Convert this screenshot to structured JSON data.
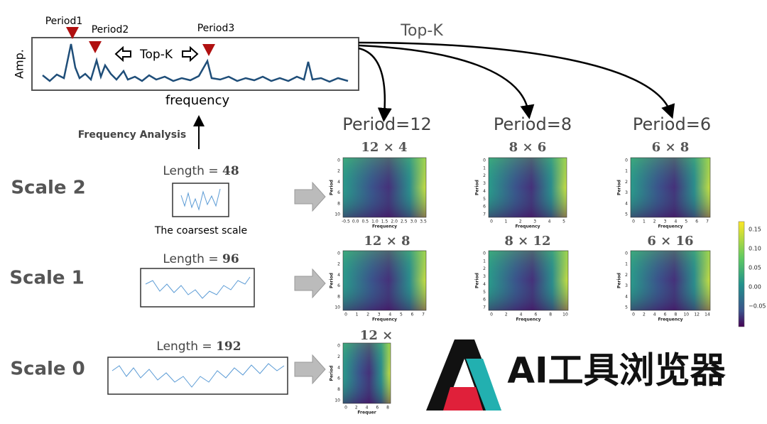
{
  "spectrum": {
    "peak_labels": [
      "Period1",
      "Period2",
      "Period3"
    ],
    "top_k_inner": "Top-K",
    "y_label": "Amp.",
    "x_label": "frequency"
  },
  "top_k": "Top-K",
  "frequency_analysis": "Frequency Analysis",
  "period_headers": [
    "Period=12",
    "Period=8",
    "Period=6"
  ],
  "scales": [
    {
      "label": "Scale 2",
      "length_prefix": "Length = ",
      "length": "48",
      "note": "The coarsest scale"
    },
    {
      "label": "Scale 1",
      "length_prefix": "Length = ",
      "length": "96"
    },
    {
      "label": "Scale 0",
      "length_prefix": "Length = ",
      "length": "192"
    }
  ],
  "heatmaps": [
    {
      "title": "12 × 4",
      "y_label": "Period",
      "x_label": "Frequency",
      "yticks": [
        "0",
        "2",
        "4",
        "6",
        "8",
        "10"
      ],
      "xticks": [
        "-0.5",
        "0.0",
        "0.5",
        "1.0",
        "1.5",
        "2.0",
        "2.5",
        "3.0",
        "3.5"
      ]
    },
    {
      "title": "8 × 6",
      "y_label": "Period",
      "x_label": "Frequency",
      "yticks": [
        "0",
        "1",
        "2",
        "3",
        "4",
        "5",
        "6",
        "7"
      ],
      "xticks": [
        "0",
        "1",
        "2",
        "3",
        "4",
        "5"
      ]
    },
    {
      "title": "6 × 8",
      "y_label": "Period",
      "x_label": "Frequency",
      "yticks": [
        "0",
        "1",
        "2",
        "3",
        "4",
        "5"
      ],
      "xticks": [
        "0",
        "1",
        "2",
        "3",
        "4",
        "5",
        "6",
        "7"
      ]
    },
    {
      "title": "12 × 8",
      "y_label": "Period",
      "x_label": "Frequency",
      "yticks": [
        "0",
        "2",
        "4",
        "6",
        "8",
        "10"
      ],
      "xticks": [
        "0",
        "1",
        "2",
        "3",
        "4",
        "5",
        "6",
        "7"
      ]
    },
    {
      "title": "8 × 12",
      "y_label": "Period",
      "x_label": "Frequency",
      "yticks": [
        "0",
        "1",
        "2",
        "3",
        "4",
        "5",
        "6",
        "7"
      ],
      "xticks": [
        "0",
        "2",
        "4",
        "6",
        "8",
        "10"
      ]
    },
    {
      "title": "6 × 16",
      "y_label": "Period",
      "x_label": "Frequency",
      "yticks": [
        "0",
        "1",
        "2",
        "3",
        "4",
        "5"
      ],
      "xticks": [
        "0",
        "2",
        "4",
        "6",
        "8",
        "10",
        "12",
        "14"
      ]
    },
    {
      "title": "12 ×",
      "y_label": "Period",
      "x_label": "Frequer",
      "yticks": [
        "0",
        "2",
        "4",
        "6",
        "8",
        "10"
      ],
      "xticks": [
        "0",
        "2",
        "4",
        "6",
        "8"
      ]
    }
  ],
  "colorbar_ticks": [
    "0.15",
    "0.10",
    "0.05",
    "0.00",
    "−0.05"
  ],
  "watermark": "AI工具浏览器"
}
